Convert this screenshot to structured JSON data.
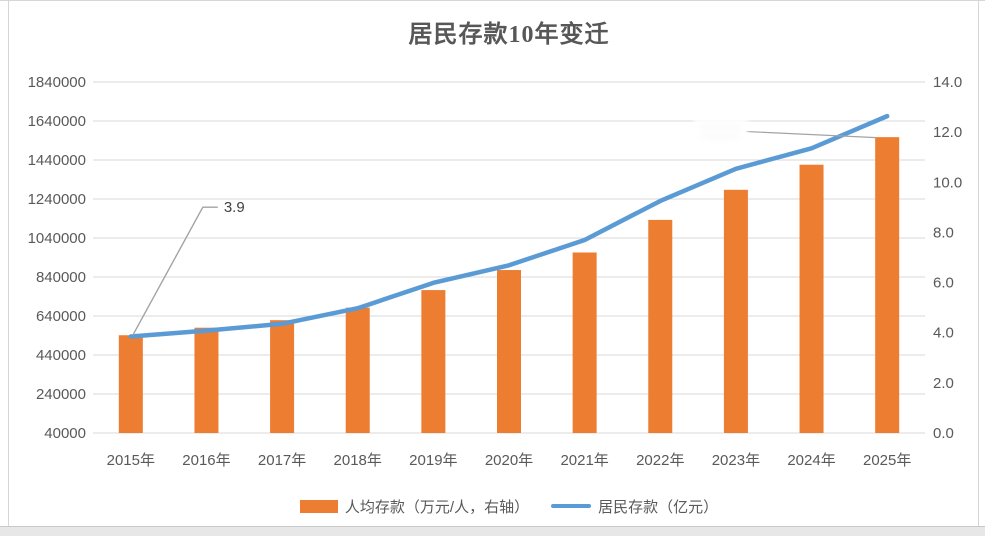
{
  "chart_data": {
    "type": "bar+line combo",
    "title": "居民存款10年变迁",
    "categories": [
      "2015年",
      "2016年",
      "2017年",
      "2018年",
      "2019年",
      "2020年",
      "2021年",
      "2022年",
      "2023年",
      "2024年",
      "2025年"
    ],
    "series": [
      {
        "name": "人均存款（万元/人，右轴）",
        "type": "bar",
        "axis": "right",
        "color": "#ED7D31",
        "values": [
          3.9,
          4.2,
          4.5,
          5.0,
          5.7,
          6.5,
          7.2,
          8.5,
          9.7,
          10.7,
          11.8
        ]
      },
      {
        "name": "居民存款（亿元）",
        "type": "line",
        "axis": "left",
        "color": "#5B9BD5",
        "values": [
          535000,
          565000,
          600000,
          680000,
          810000,
          900000,
          1030000,
          1230000,
          1395000,
          1500000,
          1665000
        ]
      }
    ],
    "left_axis": {
      "min": 40000,
      "max": 1840000,
      "step": 200000,
      "ticks": [
        "1840000",
        "1640000",
        "1440000",
        "1240000",
        "1040000",
        "840000",
        "640000",
        "440000",
        "240000",
        "40000"
      ]
    },
    "right_axis": {
      "min": 0,
      "max": 14,
      "step": 2,
      "ticks": [
        "14.0",
        "12.0",
        "10.0",
        "8.0",
        "6.0",
        "4.0",
        "2.0",
        "0.0"
      ]
    },
    "grid": "horizontal-only",
    "legend_position": "bottom",
    "annotations": [
      {
        "series": "人均存款（万元/人，右轴）",
        "category": "2015年",
        "value": 3.9,
        "label": "3.9"
      }
    ],
    "colors": {
      "bar": "#ED7D31",
      "line": "#5B9BD5",
      "grid": "#D9D9D9",
      "axis_text": "#595959",
      "annotation_text": "#404040",
      "leader": "#A3A3A3"
    }
  }
}
